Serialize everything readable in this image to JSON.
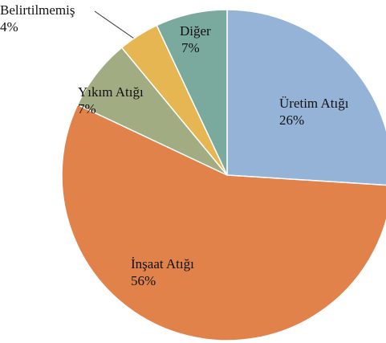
{
  "chart_data": {
    "type": "pie",
    "categories": [
      "Üretim Atığı",
      "İnşaat Atığı",
      "Yıkım Atığı",
      "Belirtilmemiş",
      "Diğer"
    ],
    "values": [
      26,
      56,
      7,
      4,
      7
    ],
    "value_labels": [
      "26%",
      "56%",
      "7%",
      "4%",
      "7%"
    ],
    "colors": [
      "#95b3d7",
      "#e0824a",
      "#a2ac83",
      "#e6b652",
      "#7aaa9d"
    ]
  }
}
